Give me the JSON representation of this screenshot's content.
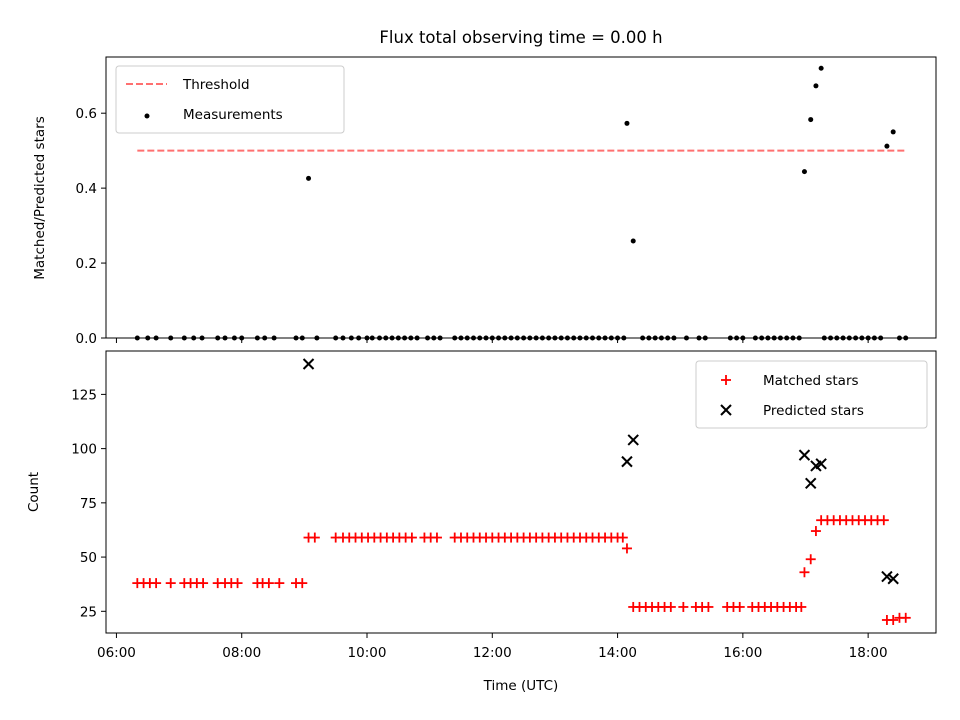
{
  "chart_data": [
    {
      "type": "scatter",
      "title": "Flux total observing time = 0.00 h",
      "xlabel": "",
      "ylabel": "Matched/Predicted stars",
      "x_axis_type": "time",
      "xlim": [
        "05:50",
        "19:05"
      ],
      "ylim": [
        0,
        0.75
      ],
      "yticks": [
        0.0,
        0.2,
        0.4,
        0.6
      ],
      "ytick_labels": [
        "0.0",
        "0.2",
        "0.4",
        "0.6"
      ],
      "xtick_labels_shown": false,
      "legend_position": "top-left",
      "grid": false,
      "series": [
        {
          "name": "Threshold",
          "kind": "dashed-line",
          "color": "#ff7070",
          "points": [
            {
              "x": "06:20",
              "y": 0.5
            },
            {
              "x": "18:36",
              "y": 0.5
            }
          ]
        },
        {
          "name": "Measurements",
          "kind": "scatter",
          "color": "#000000",
          "points": [
            {
              "x": "06:20",
              "y": 0
            },
            {
              "x": "06:30",
              "y": 0
            },
            {
              "x": "06:38",
              "y": 0
            },
            {
              "x": "06:52",
              "y": 0
            },
            {
              "x": "07:05",
              "y": 0
            },
            {
              "x": "07:14",
              "y": 0
            },
            {
              "x": "07:22",
              "y": 0
            },
            {
              "x": "07:37",
              "y": 0
            },
            {
              "x": "07:44",
              "y": 0
            },
            {
              "x": "07:53",
              "y": 0
            },
            {
              "x": "08:00",
              "y": 0
            },
            {
              "x": "08:15",
              "y": 0
            },
            {
              "x": "08:22",
              "y": 0
            },
            {
              "x": "08:31",
              "y": 0
            },
            {
              "x": "08:52",
              "y": 0
            },
            {
              "x": "08:58",
              "y": 0
            },
            {
              "x": "09:04",
              "y": 0.426
            },
            {
              "x": "09:12",
              "y": 0
            },
            {
              "x": "09:30",
              "y": 0
            },
            {
              "x": "09:37",
              "y": 0
            },
            {
              "x": "09:45",
              "y": 0
            },
            {
              "x": "09:52",
              "y": 0
            },
            {
              "x": "10:00",
              "y": 0
            },
            {
              "x": "10:05",
              "y": 0
            },
            {
              "x": "10:12",
              "y": 0
            },
            {
              "x": "10:18",
              "y": 0
            },
            {
              "x": "10:24",
              "y": 0
            },
            {
              "x": "10:30",
              "y": 0
            },
            {
              "x": "10:36",
              "y": 0
            },
            {
              "x": "10:42",
              "y": 0
            },
            {
              "x": "10:48",
              "y": 0
            },
            {
              "x": "10:58",
              "y": 0
            },
            {
              "x": "11:04",
              "y": 0
            },
            {
              "x": "11:10",
              "y": 0
            },
            {
              "x": "11:24",
              "y": 0
            },
            {
              "x": "11:30",
              "y": 0
            },
            {
              "x": "11:36",
              "y": 0
            },
            {
              "x": "11:42",
              "y": 0
            },
            {
              "x": "11:48",
              "y": 0
            },
            {
              "x": "11:54",
              "y": 0
            },
            {
              "x": "12:00",
              "y": 0
            },
            {
              "x": "12:06",
              "y": 0
            },
            {
              "x": "12:12",
              "y": 0
            },
            {
              "x": "12:18",
              "y": 0
            },
            {
              "x": "12:24",
              "y": 0
            },
            {
              "x": "12:30",
              "y": 0
            },
            {
              "x": "12:36",
              "y": 0
            },
            {
              "x": "12:42",
              "y": 0
            },
            {
              "x": "12:48",
              "y": 0
            },
            {
              "x": "12:54",
              "y": 0
            },
            {
              "x": "13:00",
              "y": 0
            },
            {
              "x": "13:06",
              "y": 0
            },
            {
              "x": "13:12",
              "y": 0
            },
            {
              "x": "13:18",
              "y": 0
            },
            {
              "x": "13:24",
              "y": 0
            },
            {
              "x": "13:30",
              "y": 0
            },
            {
              "x": "13:36",
              "y": 0
            },
            {
              "x": "13:42",
              "y": 0
            },
            {
              "x": "13:48",
              "y": 0
            },
            {
              "x": "13:54",
              "y": 0
            },
            {
              "x": "14:00",
              "y": 0
            },
            {
              "x": "14:06",
              "y": 0
            },
            {
              "x": "14:09",
              "y": 0.573
            },
            {
              "x": "14:15",
              "y": 0.259
            },
            {
              "x": "14:24",
              "y": 0
            },
            {
              "x": "14:30",
              "y": 0
            },
            {
              "x": "14:36",
              "y": 0
            },
            {
              "x": "14:42",
              "y": 0
            },
            {
              "x": "14:48",
              "y": 0
            },
            {
              "x": "14:54",
              "y": 0
            },
            {
              "x": "15:06",
              "y": 0
            },
            {
              "x": "15:18",
              "y": 0
            },
            {
              "x": "15:24",
              "y": 0
            },
            {
              "x": "15:48",
              "y": 0
            },
            {
              "x": "15:54",
              "y": 0
            },
            {
              "x": "16:00",
              "y": 0
            },
            {
              "x": "16:12",
              "y": 0
            },
            {
              "x": "16:18",
              "y": 0
            },
            {
              "x": "16:24",
              "y": 0
            },
            {
              "x": "16:30",
              "y": 0
            },
            {
              "x": "16:36",
              "y": 0
            },
            {
              "x": "16:42",
              "y": 0
            },
            {
              "x": "16:48",
              "y": 0
            },
            {
              "x": "16:54",
              "y": 0
            },
            {
              "x": "16:59",
              "y": 0.444
            },
            {
              "x": "17:05",
              "y": 0.583
            },
            {
              "x": "17:10",
              "y": 0.673
            },
            {
              "x": "17:15",
              "y": 0.72
            },
            {
              "x": "17:18",
              "y": 0
            },
            {
              "x": "17:24",
              "y": 0
            },
            {
              "x": "17:30",
              "y": 0
            },
            {
              "x": "17:36",
              "y": 0
            },
            {
              "x": "17:42",
              "y": 0
            },
            {
              "x": "17:48",
              "y": 0
            },
            {
              "x": "17:54",
              "y": 0
            },
            {
              "x": "18:00",
              "y": 0
            },
            {
              "x": "18:06",
              "y": 0
            },
            {
              "x": "18:12",
              "y": 0
            },
            {
              "x": "18:18",
              "y": 0.512
            },
            {
              "x": "18:24",
              "y": 0.55
            },
            {
              "x": "18:30",
              "y": 0
            },
            {
              "x": "18:36",
              "y": 0
            }
          ]
        }
      ]
    },
    {
      "type": "scatter",
      "title": "",
      "xlabel": "Time (UTC)",
      "ylabel": "Count",
      "x_axis_type": "time",
      "xlim": [
        "05:50",
        "19:05"
      ],
      "ylim": [
        15,
        145
      ],
      "yticks": [
        25,
        50,
        75,
        100,
        125
      ],
      "ytick_labels": [
        "25",
        "50",
        "75",
        "100",
        "125"
      ],
      "xticks": [
        "06:00",
        "08:00",
        "10:00",
        "12:00",
        "14:00",
        "16:00",
        "18:00"
      ],
      "xtick_labels": [
        "06:00",
        "08:00",
        "10:00",
        "12:00",
        "14:00",
        "16:00",
        "18:00"
      ],
      "legend_position": "top-right",
      "grid": false,
      "series": [
        {
          "name": "Matched stars",
          "kind": "plus",
          "color": "#ff0000",
          "points": [
            {
              "x": "06:20",
              "y": 38
            },
            {
              "x": "06:26",
              "y": 38
            },
            {
              "x": "06:32",
              "y": 38
            },
            {
              "x": "06:38",
              "y": 38
            },
            {
              "x": "06:52",
              "y": 38
            },
            {
              "x": "07:05",
              "y": 38
            },
            {
              "x": "07:11",
              "y": 38
            },
            {
              "x": "07:17",
              "y": 38
            },
            {
              "x": "07:23",
              "y": 38
            },
            {
              "x": "07:37",
              "y": 38
            },
            {
              "x": "07:44",
              "y": 38
            },
            {
              "x": "07:50",
              "y": 38
            },
            {
              "x": "07:56",
              "y": 38
            },
            {
              "x": "08:15",
              "y": 38
            },
            {
              "x": "08:20",
              "y": 38
            },
            {
              "x": "08:26",
              "y": 38
            },
            {
              "x": "08:36",
              "y": 38
            },
            {
              "x": "08:52",
              "y": 38
            },
            {
              "x": "08:58",
              "y": 38
            },
            {
              "x": "09:04",
              "y": 59
            },
            {
              "x": "09:10",
              "y": 59
            },
            {
              "x": "09:30",
              "y": 59
            },
            {
              "x": "09:37",
              "y": 59
            },
            {
              "x": "09:43",
              "y": 59
            },
            {
              "x": "09:49",
              "y": 59
            },
            {
              "x": "09:55",
              "y": 59
            },
            {
              "x": "10:01",
              "y": 59
            },
            {
              "x": "10:07",
              "y": 59
            },
            {
              "x": "10:13",
              "y": 59
            },
            {
              "x": "10:19",
              "y": 59
            },
            {
              "x": "10:25",
              "y": 59
            },
            {
              "x": "10:31",
              "y": 59
            },
            {
              "x": "10:37",
              "y": 59
            },
            {
              "x": "10:43",
              "y": 59
            },
            {
              "x": "10:55",
              "y": 59
            },
            {
              "x": "11:01",
              "y": 59
            },
            {
              "x": "11:07",
              "y": 59
            },
            {
              "x": "11:24",
              "y": 59
            },
            {
              "x": "11:30",
              "y": 59
            },
            {
              "x": "11:36",
              "y": 59
            },
            {
              "x": "11:42",
              "y": 59
            },
            {
              "x": "11:48",
              "y": 59
            },
            {
              "x": "11:54",
              "y": 59
            },
            {
              "x": "12:00",
              "y": 59
            },
            {
              "x": "12:06",
              "y": 59
            },
            {
              "x": "12:12",
              "y": 59
            },
            {
              "x": "12:18",
              "y": 59
            },
            {
              "x": "12:24",
              "y": 59
            },
            {
              "x": "12:30",
              "y": 59
            },
            {
              "x": "12:36",
              "y": 59
            },
            {
              "x": "12:42",
              "y": 59
            },
            {
              "x": "12:48",
              "y": 59
            },
            {
              "x": "12:54",
              "y": 59
            },
            {
              "x": "13:00",
              "y": 59
            },
            {
              "x": "13:06",
              "y": 59
            },
            {
              "x": "13:12",
              "y": 59
            },
            {
              "x": "13:18",
              "y": 59
            },
            {
              "x": "13:24",
              "y": 59
            },
            {
              "x": "13:30",
              "y": 59
            },
            {
              "x": "13:36",
              "y": 59
            },
            {
              "x": "13:42",
              "y": 59
            },
            {
              "x": "13:48",
              "y": 59
            },
            {
              "x": "13:54",
              "y": 59
            },
            {
              "x": "14:00",
              "y": 59
            },
            {
              "x": "14:05",
              "y": 59
            },
            {
              "x": "14:09",
              "y": 54
            },
            {
              "x": "14:15",
              "y": 27
            },
            {
              "x": "14:21",
              "y": 27
            },
            {
              "x": "14:27",
              "y": 27
            },
            {
              "x": "14:33",
              "y": 27
            },
            {
              "x": "14:39",
              "y": 27
            },
            {
              "x": "14:45",
              "y": 27
            },
            {
              "x": "14:51",
              "y": 27
            },
            {
              "x": "15:03",
              "y": 27
            },
            {
              "x": "15:15",
              "y": 27
            },
            {
              "x": "15:21",
              "y": 27
            },
            {
              "x": "15:27",
              "y": 27
            },
            {
              "x": "15:45",
              "y": 27
            },
            {
              "x": "15:51",
              "y": 27
            },
            {
              "x": "15:57",
              "y": 27
            },
            {
              "x": "16:09",
              "y": 27
            },
            {
              "x": "16:15",
              "y": 27
            },
            {
              "x": "16:21",
              "y": 27
            },
            {
              "x": "16:27",
              "y": 27
            },
            {
              "x": "16:33",
              "y": 27
            },
            {
              "x": "16:39",
              "y": 27
            },
            {
              "x": "16:45",
              "y": 27
            },
            {
              "x": "16:51",
              "y": 27
            },
            {
              "x": "16:56",
              "y": 27
            },
            {
              "x": "16:59",
              "y": 43
            },
            {
              "x": "17:05",
              "y": 49
            },
            {
              "x": "17:10",
              "y": 62
            },
            {
              "x": "17:15",
              "y": 67
            },
            {
              "x": "17:21",
              "y": 67
            },
            {
              "x": "17:27",
              "y": 67
            },
            {
              "x": "17:33",
              "y": 67
            },
            {
              "x": "17:39",
              "y": 67
            },
            {
              "x": "17:45",
              "y": 67
            },
            {
              "x": "17:51",
              "y": 67
            },
            {
              "x": "17:57",
              "y": 67
            },
            {
              "x": "18:03",
              "y": 67
            },
            {
              "x": "18:09",
              "y": 67
            },
            {
              "x": "18:15",
              "y": 67
            },
            {
              "x": "18:18",
              "y": 21
            },
            {
              "x": "18:24",
              "y": 21
            },
            {
              "x": "18:30",
              "y": 22
            },
            {
              "x": "18:36",
              "y": 22
            }
          ]
        },
        {
          "name": "Predicted stars",
          "kind": "cross",
          "color": "#000000",
          "points": [
            {
              "x": "09:04",
              "y": 139
            },
            {
              "x": "14:09",
              "y": 94
            },
            {
              "x": "14:15",
              "y": 104
            },
            {
              "x": "16:59",
              "y": 97
            },
            {
              "x": "17:05",
              "y": 84
            },
            {
              "x": "17:10",
              "y": 92
            },
            {
              "x": "17:15",
              "y": 93
            },
            {
              "x": "18:18",
              "y": 41
            },
            {
              "x": "18:24",
              "y": 40
            }
          ]
        }
      ]
    }
  ]
}
